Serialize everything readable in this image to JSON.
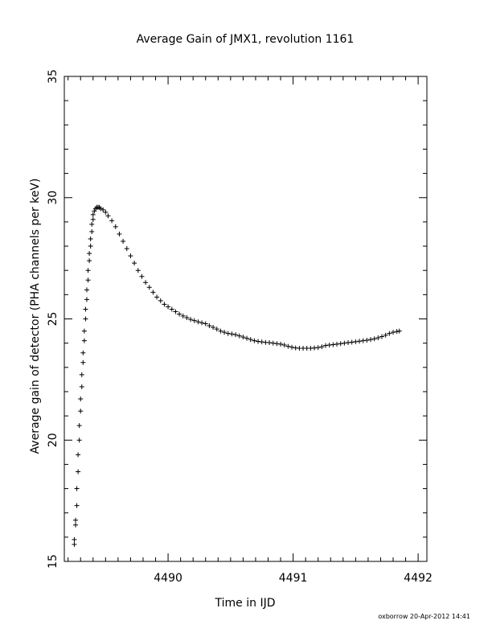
{
  "chart_data": {
    "type": "scatter",
    "title": "Average Gain of JMX1, revolution 1161",
    "xlabel": "Time in IJD",
    "ylabel": "Average gain of detector (PHA channels per keV)",
    "xlim": [
      4489.17,
      4492.07
    ],
    "ylim": [
      15,
      35
    ],
    "x_ticks": [
      4490,
      4491,
      4492
    ],
    "x_tick_labels": [
      "4490",
      "4491",
      "4492"
    ],
    "y_ticks": [
      15,
      20,
      25,
      30,
      35
    ],
    "y_tick_labels": [
      "15",
      "20",
      "25",
      "30",
      "35"
    ],
    "grid": false,
    "legend": "none",
    "marker": "plus",
    "color": "#000000",
    "series": [
      {
        "points": [
          [
            4489.25,
            15.7
          ],
          [
            4489.25,
            15.9
          ],
          [
            4489.26,
            16.5
          ],
          [
            4489.26,
            16.7
          ],
          [
            4489.27,
            17.3
          ],
          [
            4489.27,
            18.0
          ],
          [
            4489.28,
            18.7
          ],
          [
            4489.28,
            19.4
          ],
          [
            4489.29,
            20.0
          ],
          [
            4489.29,
            20.6
          ],
          [
            4489.3,
            21.2
          ],
          [
            4489.3,
            21.7
          ],
          [
            4489.31,
            22.2
          ],
          [
            4489.31,
            22.7
          ],
          [
            4489.32,
            23.2
          ],
          [
            4489.32,
            23.6
          ],
          [
            4489.33,
            24.1
          ],
          [
            4489.33,
            24.5
          ],
          [
            4489.34,
            25.0
          ],
          [
            4489.34,
            25.4
          ],
          [
            4489.35,
            25.8
          ],
          [
            4489.35,
            26.2
          ],
          [
            4489.36,
            26.6
          ],
          [
            4489.36,
            27.0
          ],
          [
            4489.37,
            27.4
          ],
          [
            4489.37,
            27.7
          ],
          [
            4489.38,
            28.0
          ],
          [
            4489.38,
            28.3
          ],
          [
            4489.39,
            28.6
          ],
          [
            4489.39,
            28.9
          ],
          [
            4489.4,
            29.1
          ],
          [
            4489.4,
            29.3
          ],
          [
            4489.41,
            29.45
          ],
          [
            4489.42,
            29.55
          ],
          [
            4489.43,
            29.6
          ],
          [
            4489.44,
            29.6
          ],
          [
            4489.45,
            29.6
          ],
          [
            4489.46,
            29.55
          ],
          [
            4489.48,
            29.5
          ],
          [
            4489.5,
            29.4
          ],
          [
            4489.52,
            29.25
          ],
          [
            4489.55,
            29.05
          ],
          [
            4489.58,
            28.8
          ],
          [
            4489.61,
            28.5
          ],
          [
            4489.64,
            28.2
          ],
          [
            4489.67,
            27.9
          ],
          [
            4489.7,
            27.6
          ],
          [
            4489.73,
            27.3
          ],
          [
            4489.76,
            27.0
          ],
          [
            4489.79,
            26.75
          ],
          [
            4489.82,
            26.5
          ],
          [
            4489.85,
            26.3
          ],
          [
            4489.88,
            26.1
          ],
          [
            4489.91,
            25.9
          ],
          [
            4489.94,
            25.75
          ],
          [
            4489.97,
            25.6
          ],
          [
            4490.0,
            25.5
          ],
          [
            4490.03,
            25.4
          ],
          [
            4490.06,
            25.3
          ],
          [
            4490.09,
            25.2
          ],
          [
            4490.12,
            25.12
          ],
          [
            4490.15,
            25.05
          ],
          [
            4490.18,
            24.98
          ],
          [
            4490.21,
            24.93
          ],
          [
            4490.24,
            24.88
          ],
          [
            4490.27,
            24.84
          ],
          [
            4490.3,
            24.8
          ],
          [
            4490.33,
            24.72
          ],
          [
            4490.36,
            24.65
          ],
          [
            4490.39,
            24.58
          ],
          [
            4490.42,
            24.5
          ],
          [
            4490.45,
            24.45
          ],
          [
            4490.48,
            24.4
          ],
          [
            4490.51,
            24.38
          ],
          [
            4490.54,
            24.35
          ],
          [
            4490.57,
            24.3
          ],
          [
            4490.6,
            24.25
          ],
          [
            4490.63,
            24.2
          ],
          [
            4490.66,
            24.15
          ],
          [
            4490.69,
            24.1
          ],
          [
            4490.72,
            24.07
          ],
          [
            4490.75,
            24.05
          ],
          [
            4490.78,
            24.03
          ],
          [
            4490.81,
            24.02
          ],
          [
            4490.84,
            24.0
          ],
          [
            4490.87,
            23.98
          ],
          [
            4490.9,
            23.96
          ],
          [
            4490.93,
            23.92
          ],
          [
            4490.96,
            23.87
          ],
          [
            4490.99,
            23.83
          ],
          [
            4491.02,
            23.8
          ],
          [
            4491.05,
            23.79
          ],
          [
            4491.08,
            23.79
          ],
          [
            4491.11,
            23.79
          ],
          [
            4491.14,
            23.79
          ],
          [
            4491.17,
            23.8
          ],
          [
            4491.2,
            23.82
          ],
          [
            4491.23,
            23.85
          ],
          [
            4491.26,
            23.9
          ],
          [
            4491.29,
            23.92
          ],
          [
            4491.32,
            23.94
          ],
          [
            4491.35,
            23.96
          ],
          [
            4491.38,
            23.98
          ],
          [
            4491.41,
            24.0
          ],
          [
            4491.44,
            24.02
          ],
          [
            4491.47,
            24.04
          ],
          [
            4491.5,
            24.06
          ],
          [
            4491.53,
            24.08
          ],
          [
            4491.56,
            24.1
          ],
          [
            4491.59,
            24.12
          ],
          [
            4491.62,
            24.15
          ],
          [
            4491.65,
            24.18
          ],
          [
            4491.68,
            24.22
          ],
          [
            4491.71,
            24.27
          ],
          [
            4491.74,
            24.33
          ],
          [
            4491.77,
            24.4
          ],
          [
            4491.8,
            24.45
          ],
          [
            4491.83,
            24.48
          ],
          [
            4491.85,
            24.5
          ]
        ]
      }
    ]
  },
  "footer": {
    "credit": "oxborrow 20-Apr-2012 14:41"
  }
}
